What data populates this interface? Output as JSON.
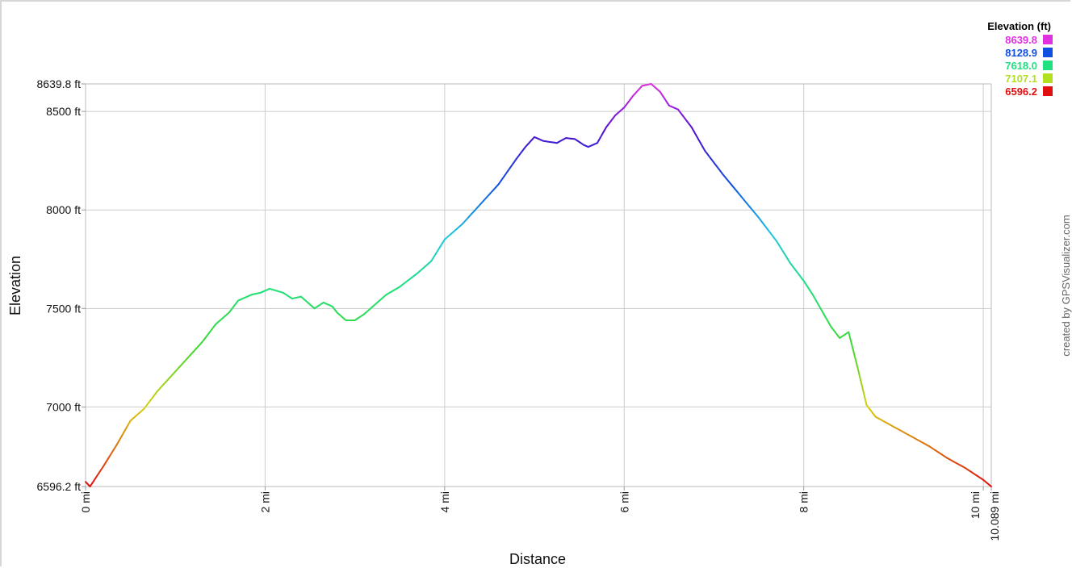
{
  "chart_data": {
    "type": "line",
    "title": "",
    "xlabel": "Distance",
    "ylabel": "Elevation",
    "xlim": [
      0,
      10.089
    ],
    "ylim": [
      6596.2,
      8639.8
    ],
    "y_ticks": [
      {
        "value": 6596.2,
        "label": "6596.2 ft"
      },
      {
        "value": 7000,
        "label": "7000 ft"
      },
      {
        "value": 7500,
        "label": "7500 ft"
      },
      {
        "value": 8000,
        "label": "8000 ft"
      },
      {
        "value": 8500,
        "label": "8500 ft"
      },
      {
        "value": 8639.8,
        "label": "8639.8 ft"
      }
    ],
    "x_ticks": [
      {
        "value": 0,
        "label": "0 mi"
      },
      {
        "value": 2,
        "label": "2 mi"
      },
      {
        "value": 4,
        "label": "4 mi"
      },
      {
        "value": 6,
        "label": "6 mi"
      },
      {
        "value": 8,
        "label": "8 mi"
      },
      {
        "value": 10,
        "label": "10 mi"
      },
      {
        "value": 10.089,
        "label": "10.089 mi"
      }
    ],
    "grid": true,
    "legend": {
      "title": "Elevation (ft)",
      "placement": "top-right",
      "entries": [
        {
          "label": "8639.8",
          "color": "#e030e0"
        },
        {
          "label": "8128.9",
          "color": "#1050e0"
        },
        {
          "label": "7618.0",
          "color": "#20e080"
        },
        {
          "label": "7107.1",
          "color": "#b0e020"
        },
        {
          "label": "6596.2",
          "color": "#e01010"
        }
      ]
    },
    "color_scale": [
      {
        "value": 6596.2,
        "color": "#e01010"
      },
      {
        "value": 7000,
        "color": "#d8d010"
      },
      {
        "value": 7300,
        "color": "#40d830"
      },
      {
        "value": 7618.0,
        "color": "#20e080"
      },
      {
        "value": 7870,
        "color": "#20c8e0"
      },
      {
        "value": 8128.9,
        "color": "#1050e0"
      },
      {
        "value": 8400,
        "color": "#5010d0"
      },
      {
        "value": 8639.8,
        "color": "#e030e0"
      }
    ],
    "series": [
      {
        "x": [
          0,
          0.05,
          0.2,
          0.35,
          0.5,
          0.65,
          0.8,
          1.0,
          1.1,
          1.3,
          1.45,
          1.6,
          1.7,
          1.85,
          1.95,
          2.05,
          2.2,
          2.3,
          2.4,
          2.45,
          2.55,
          2.65,
          2.75,
          2.8,
          2.9,
          3.0,
          3.1,
          3.2,
          3.35,
          3.5,
          3.7,
          3.85,
          4.0,
          4.2,
          4.4,
          4.6,
          4.8,
          4.9,
          5.0,
          5.1,
          5.25,
          5.35,
          5.45,
          5.55,
          5.6,
          5.7,
          5.8,
          5.9,
          6.0,
          6.1,
          6.2,
          6.3,
          6.4,
          6.5,
          6.6,
          6.75,
          6.9,
          7.1,
          7.3,
          7.5,
          7.7,
          7.85,
          8.0,
          8.1,
          8.2,
          8.3,
          8.4,
          8.5,
          8.6,
          8.7,
          8.8,
          9.0,
          9.2,
          9.4,
          9.6,
          9.8,
          10.0,
          10.089
        ],
        "y": [
          6620,
          6596.2,
          6700,
          6810,
          6930,
          6990,
          7080,
          7180,
          7230,
          7330,
          7420,
          7480,
          7540,
          7570,
          7580,
          7600,
          7580,
          7550,
          7560,
          7540,
          7500,
          7530,
          7510,
          7480,
          7440,
          7440,
          7470,
          7510,
          7570,
          7610,
          7680,
          7740,
          7850,
          7930,
          8030,
          8130,
          8260,
          8320,
          8370,
          8350,
          8340,
          8365,
          8360,
          8330,
          8320,
          8340,
          8420,
          8480,
          8520,
          8580,
          8630,
          8639.8,
          8600,
          8530,
          8510,
          8420,
          8300,
          8180,
          8070,
          7960,
          7840,
          7730,
          7640,
          7570,
          7490,
          7410,
          7350,
          7380,
          7200,
          7010,
          6950,
          6900,
          6850,
          6800,
          6740,
          6690,
          6630,
          6596.2
        ]
      }
    ]
  },
  "credit": "created by GPSVisualizer.com"
}
